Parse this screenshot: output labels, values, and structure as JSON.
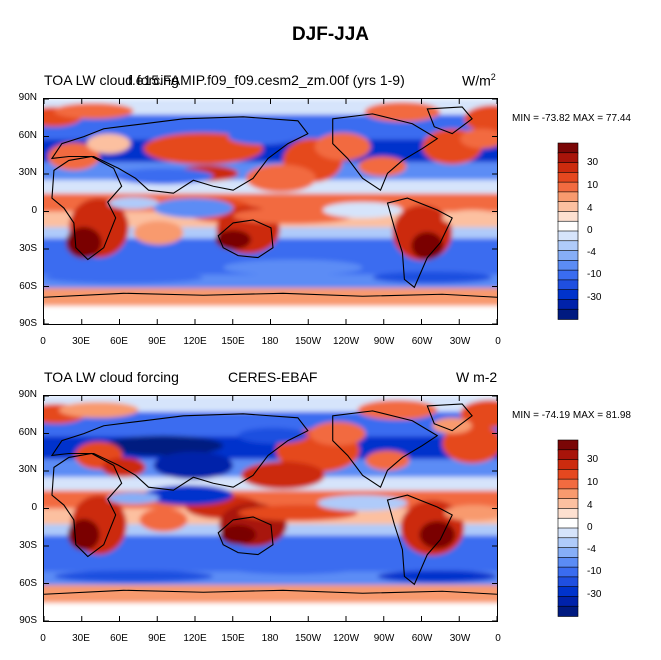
{
  "title": "DJF-JJA",
  "colors": {
    "scale": [
      "#001a80",
      "#0022aa",
      "#0033cc",
      "#1f4fe0",
      "#3a6cf0",
      "#5b8cf5",
      "#86aef7",
      "#afcbfa",
      "#d6e4fb",
      "#ffffff",
      "#fde0d0",
      "#fcc0a0",
      "#f89a6e",
      "#f26b40",
      "#e5481f",
      "#cc2b0e",
      "#a8140a",
      "#7a0606"
    ],
    "land_outline": "#000000"
  },
  "panels": [
    {
      "id": "model",
      "left_title": "TOA LW cloud forcing",
      "center_title": "f.e15.FAMIP.f09_f09.cesm2_zm.00f (yrs 1-9)",
      "units_text": "W/m",
      "units_sup": "2",
      "min_max": "MIN = -73.82 MAX = 77.44",
      "lat_labels": [
        "90N",
        "60N",
        "30N",
        "0",
        "30S",
        "60S",
        "90S"
      ],
      "lon_labels": [
        "0",
        "30E",
        "60E",
        "90E",
        "120E",
        "150E",
        "180",
        "150W",
        "120W",
        "90W",
        "60W",
        "30W",
        "0"
      ],
      "colorbar_labels": [
        "30",
        "10",
        "4",
        "0",
        "-4",
        "-10",
        "-30"
      ]
    },
    {
      "id": "obs",
      "left_title": "TOA LW cloud forcing",
      "center_title": "CERES-EBAF",
      "units_text": "W m-2",
      "units_sup": "",
      "min_max": "MIN = -74.19 MAX = 81.98",
      "lat_labels": [
        "90N",
        "60N",
        "30N",
        "0",
        "30S",
        "60S",
        "90S"
      ],
      "lon_labels": [
        "0",
        "30E",
        "60E",
        "90E",
        "120E",
        "150E",
        "180",
        "150W",
        "120W",
        "90W",
        "60W",
        "30W",
        "0"
      ],
      "colorbar_labels": [
        "30",
        "10",
        "4",
        "0",
        "-4",
        "-10",
        "-30"
      ]
    }
  ]
}
